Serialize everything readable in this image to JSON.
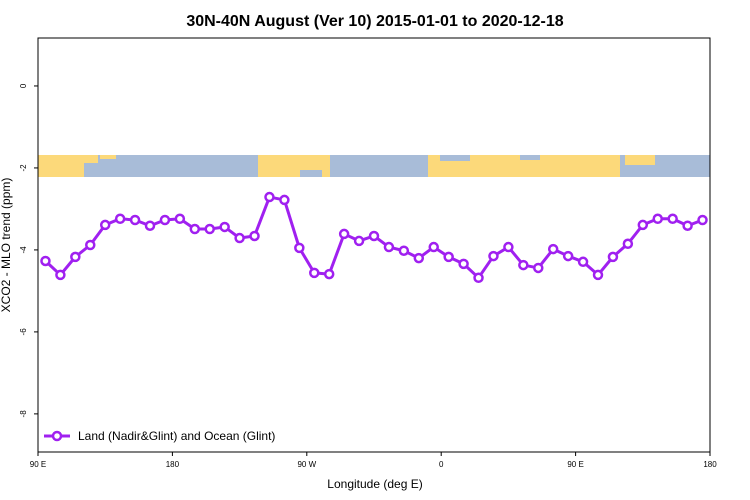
{
  "chart_data": {
    "type": "line",
    "title": "30N-40N August (Ver 10)   2015-01-01 to 2020-12-18",
    "x_label": "Longitude (deg E)",
    "y_label": "XCO2 - MLO trend (ppm)",
    "xlim": [
      90,
      540
    ],
    "ylim": [
      -8.93,
      1.17
    ],
    "xticks": [
      {
        "value": 90,
        "label": "90 E"
      },
      {
        "value": 180,
        "label": "180"
      },
      {
        "value": 270,
        "label": "90 W"
      },
      {
        "value": 360,
        "label": "0"
      },
      {
        "value": 450,
        "label": "90 E"
      },
      {
        "value": 540,
        "label": "180"
      }
    ],
    "yticks": [
      0,
      -2,
      -4,
      -6,
      -8
    ],
    "legend_position": "lower left",
    "x": [
      95,
      105,
      115,
      125,
      135,
      145,
      155,
      165,
      175,
      185,
      195,
      205,
      215,
      225,
      235,
      245,
      255,
      265,
      275,
      285,
      295,
      305,
      315,
      325,
      335,
      345,
      355,
      365,
      375,
      385,
      395,
      405,
      415,
      425,
      435,
      445,
      455,
      465,
      475,
      485,
      495,
      505,
      515,
      525,
      535
    ],
    "series": [
      {
        "name": "Land (Nadir&Glint) and Ocean (Glint)",
        "color": "#a020f0",
        "values": [
          -4.27,
          -4.61,
          -4.17,
          -3.88,
          -3.39,
          -3.24,
          -3.27,
          -3.41,
          -3.27,
          -3.24,
          -3.49,
          -3.49,
          -3.44,
          -3.71,
          -3.66,
          -2.71,
          -2.78,
          -3.95,
          -4.56,
          -4.59,
          -3.61,
          -3.78,
          -3.66,
          -3.93,
          -4.02,
          -4.2,
          -3.93,
          -4.17,
          -4.34,
          -4.68,
          -4.15,
          -3.93,
          -4.37,
          -4.44,
          -3.98,
          -4.15,
          -4.29,
          -4.61,
          -4.17,
          -3.85,
          -3.39,
          -3.24,
          -3.24,
          -3.41,
          -3.27
        ]
      }
    ]
  }
}
